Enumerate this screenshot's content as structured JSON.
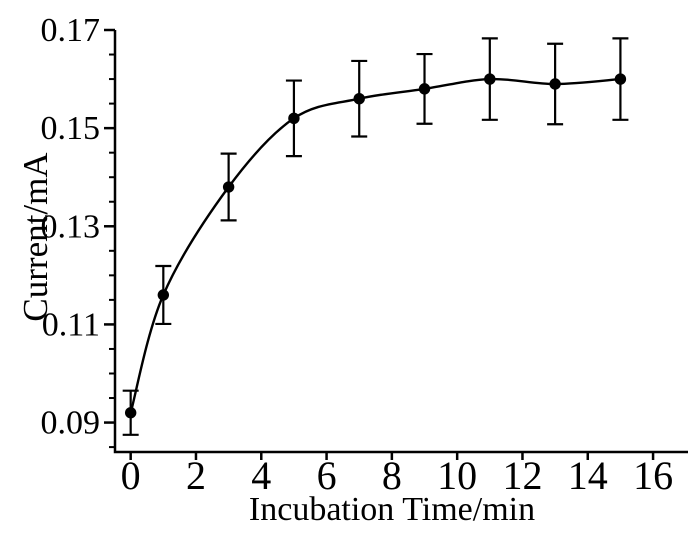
{
  "figure": {
    "background_color": "#ffffff",
    "foreground_color": "#000000"
  },
  "chart_data": {
    "type": "line",
    "title": "",
    "xlabel": "Incubation Time/min",
    "ylabel": "Current/mA",
    "x": [
      0,
      1,
      3,
      5,
      7,
      9,
      11,
      13,
      15
    ],
    "y": [
      0.092,
      0.116,
      0.138,
      0.152,
      0.156,
      0.158,
      0.16,
      0.159,
      0.16
    ],
    "y_err": [
      0.0045,
      0.0059,
      0.0068,
      0.0077,
      0.0077,
      0.0071,
      0.0083,
      0.0082,
      0.0083
    ],
    "xlim": [
      -0.48,
      17.07
    ],
    "ylim": [
      0.084,
      0.17
    ],
    "x_ticks": [
      0,
      2,
      4,
      6,
      8,
      10,
      12,
      14,
      16
    ],
    "x_tick_labels": [
      "0",
      "2",
      "4",
      "6",
      "8",
      "10",
      "12",
      "14",
      "16"
    ],
    "y_ticks": [
      0.09,
      0.11,
      0.13,
      0.15,
      0.17
    ],
    "y_tick_labels": [
      "0.09",
      "0.11",
      "0.13",
      "0.15",
      "0.17"
    ],
    "y_minor_tick_step": 0.005,
    "grid": false,
    "legend": null,
    "marker": "filled-circle",
    "line_style": "smooth-spline",
    "line_color": "#000000",
    "marker_color": "#000000",
    "error_bars": "vertical-with-caps"
  }
}
